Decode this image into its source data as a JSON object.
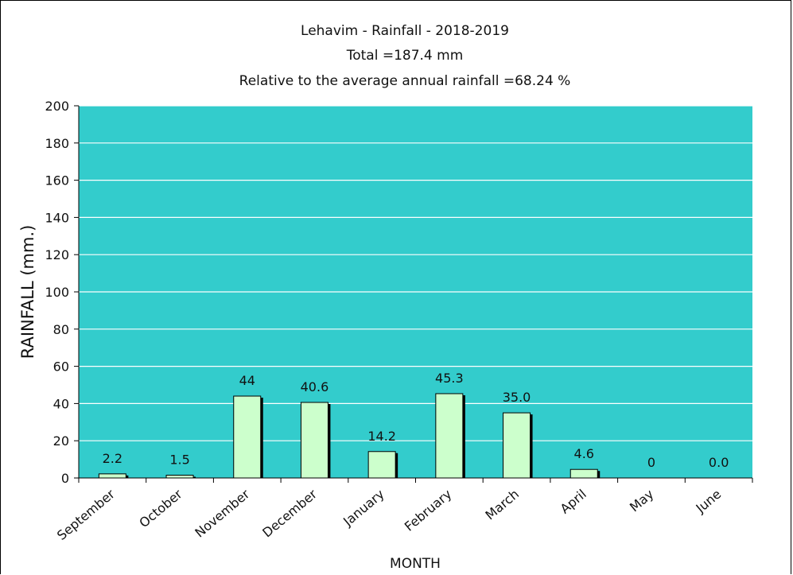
{
  "chart_data": {
    "type": "bar",
    "title": "Lehavim - Rainfall - 2018-2019",
    "subtitle_lines": [
      "Total =187.4 mm",
      "Relative to the average annual rainfall =68.24 %"
    ],
    "xlabel": "MONTH",
    "ylabel": "RAINFALL (mm.)",
    "categories": [
      "September",
      "October",
      "November",
      "December",
      "January",
      "February",
      "March",
      "April",
      "May",
      "June"
    ],
    "values": [
      2.2,
      1.5,
      44,
      40.6,
      14.2,
      45.3,
      35.0,
      4.6,
      0,
      0.0
    ],
    "value_labels": [
      "2.2",
      "1.5",
      "44",
      "40.6",
      "14.2",
      "45.3",
      "35.0",
      "4.6",
      "0",
      "0.0"
    ],
    "ylim": [
      0,
      200
    ],
    "yticks": [
      0,
      20,
      40,
      60,
      80,
      100,
      120,
      140,
      160,
      180,
      200
    ],
    "grid": true,
    "legend": "none",
    "colors": {
      "plot_background": "#33CCCC",
      "bar_fill": "#CCFFCC",
      "bar_shadow": "#000000",
      "gridline": "#FFFFFF"
    }
  }
}
